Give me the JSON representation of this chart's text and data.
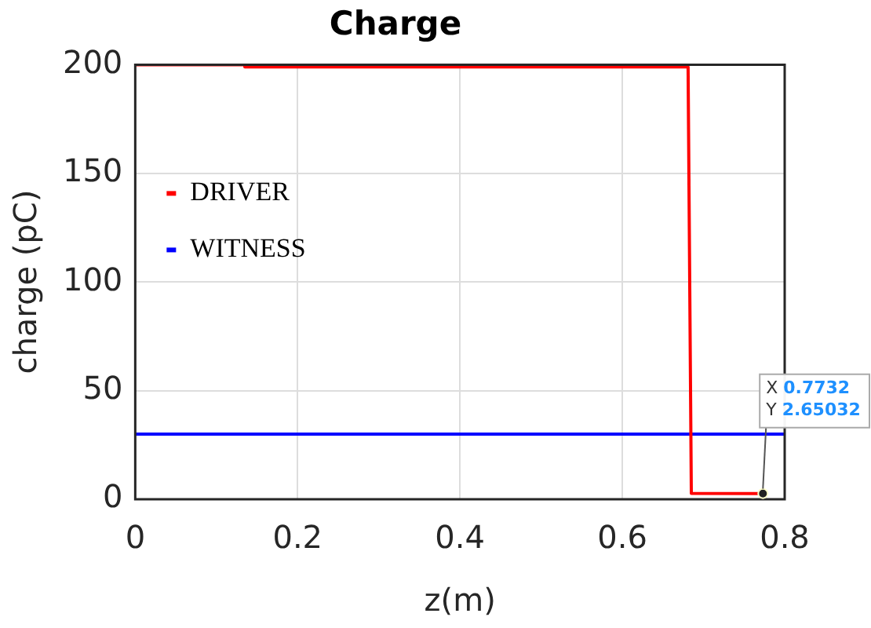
{
  "chart_data": {
    "type": "line",
    "title": "Charge",
    "xlabel": "z(m)",
    "ylabel": "charge (pC)",
    "series": [
      {
        "name": "DRIVER",
        "color": "#ff0000",
        "x": [
          0,
          0.135,
          0.135,
          0.681,
          0.685,
          0.7732
        ],
        "values": [
          200,
          200,
          199,
          199,
          2.7,
          2.65032
        ]
      },
      {
        "name": "WITNESS",
        "color": "#0000ff",
        "x": [
          0,
          0.8
        ],
        "values": [
          30,
          30
        ]
      }
    ],
    "xlim": [
      0,
      0.8
    ],
    "xticks": [
      0,
      0.2,
      0.4,
      0.6,
      0.8
    ],
    "ylim": [
      0,
      200
    ],
    "yticks": [
      0,
      50,
      100,
      150,
      200
    ],
    "grid": true,
    "legend": "top left",
    "marker": "none",
    "line_style": "solid",
    "annotations": [
      {
        "text": "X 0.7732\nY 2.65032",
        "x": 0.7732,
        "y": 2.65032
      }
    ]
  }
}
